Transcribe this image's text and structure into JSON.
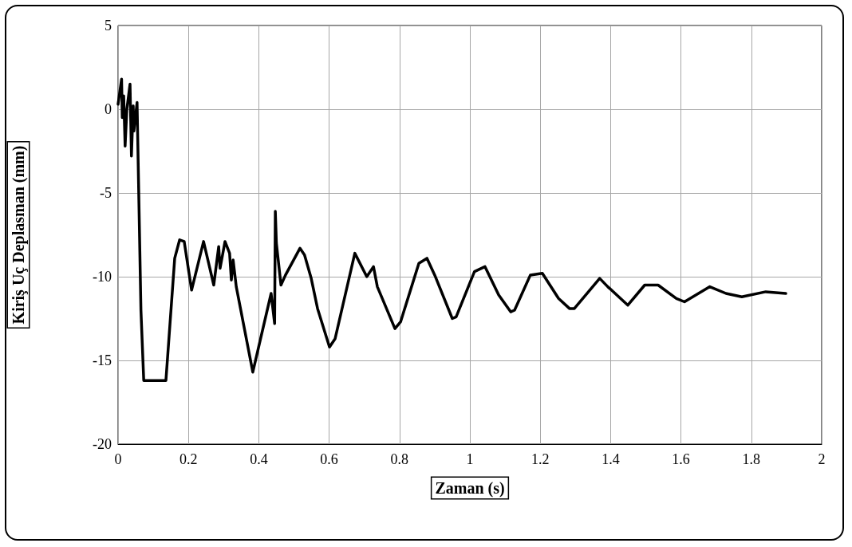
{
  "chart_data": {
    "type": "line",
    "xlabel": "Zaman (s)",
    "ylabel": "Kiriş Uç Deplasman (mm)",
    "xlim": [
      0,
      2
    ],
    "xticks": [
      0,
      0.2,
      0.4,
      0.6,
      0.8,
      1,
      1.2,
      1.4,
      1.6,
      1.8,
      2
    ],
    "ylim": [
      -20,
      5
    ],
    "yticks": [
      -20,
      -15,
      -10,
      -5,
      0,
      5
    ],
    "grid": true,
    "marker": "none",
    "line_style": "solid",
    "series": [
      {
        "color": "#000000",
        "x": [
          0,
          0.01,
          0.012,
          0.016,
          0.02,
          0.025,
          0.034,
          0.038,
          0.043,
          0.045,
          0.054,
          0.057,
          0.065,
          0.073,
          0.1,
          0.136,
          0.161,
          0.175,
          0.188,
          0.209,
          0.243,
          0.272,
          0.286,
          0.29,
          0.304,
          0.317,
          0.322,
          0.327,
          0.336,
          0.383,
          0.435,
          0.445,
          0.447,
          0.45,
          0.463,
          0.476,
          0.517,
          0.53,
          0.549,
          0.567,
          0.601,
          0.617,
          0.673,
          0.707,
          0.726,
          0.737,
          0.787,
          0.803,
          0.855,
          0.878,
          0.9,
          0.95,
          0.961,
          1.013,
          1.043,
          1.082,
          1.116,
          1.127,
          1.172,
          1.206,
          1.252,
          1.283,
          1.297,
          1.369,
          1.392,
          1.449,
          1.497,
          1.535,
          1.587,
          1.61,
          1.682,
          1.728,
          1.773,
          1.841,
          1.898
        ],
        "values": [
          0.3,
          1.8,
          -0.5,
          0.8,
          -2.2,
          0,
          1.5,
          -2.8,
          0.2,
          -1.3,
          0.4,
          -3,
          -12,
          -16.2,
          -16.2,
          -16.2,
          -8.9,
          -7.8,
          -7.9,
          -10.8,
          -7.9,
          -10.5,
          -8.2,
          -9.5,
          -7.9,
          -8.6,
          -10.2,
          -9,
          -10.6,
          -15.7,
          -11,
          -12.8,
          -6.1,
          -8,
          -10.5,
          -9.9,
          -8.3,
          -8.7,
          -10.1,
          -11.9,
          -14.2,
          -13.7,
          -8.6,
          -10,
          -9.4,
          -10.6,
          -13.1,
          -12.7,
          -9.2,
          -8.9,
          -9.9,
          -12.5,
          -12.4,
          -9.7,
          -9.4,
          -11.1,
          -12.1,
          -12,
          -9.9,
          -9.8,
          -11.3,
          -11.9,
          -11.9,
          -10.1,
          -10.6,
          -11.7,
          -10.5,
          -10.5,
          -11.3,
          -11.5,
          -10.6,
          -11,
          -11.2,
          -10.9,
          -11
        ]
      }
    ]
  }
}
